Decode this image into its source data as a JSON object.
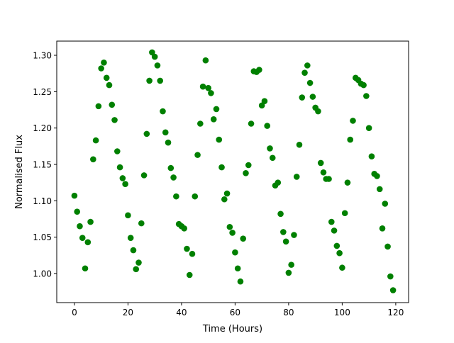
{
  "chart_data": {
    "type": "scatter",
    "title": "",
    "xlabel": "Time (Hours)",
    "ylabel": "Normalised Flux",
    "xlim": [
      -6.6,
      124.8
    ],
    "ylim": [
      0.96,
      1.3195
    ],
    "xticks": [
      0,
      20,
      40,
      60,
      80,
      100,
      120
    ],
    "yticks": [
      1.0,
      1.05,
      1.1,
      1.15,
      1.2,
      1.25,
      1.3
    ],
    "xtick_labels": [
      "0",
      "20",
      "40",
      "60",
      "80",
      "100",
      "120"
    ],
    "ytick_labels": [
      "1.00",
      "1.05",
      "1.10",
      "1.15",
      "1.20",
      "1.25",
      "1.30"
    ],
    "grid": false,
    "marker_color": "#008000",
    "x": [
      0,
      1,
      2,
      3,
      4,
      5,
      6,
      7,
      8,
      9,
      10,
      11,
      12,
      13,
      14,
      15,
      16,
      17,
      18,
      19,
      20,
      21,
      22,
      23,
      24,
      25,
      26,
      27,
      28,
      29,
      30,
      31,
      32,
      33,
      34,
      35,
      36,
      37,
      38,
      39,
      40,
      41,
      42,
      43,
      44,
      45,
      46,
      47,
      48,
      49,
      50,
      51,
      52,
      53,
      54,
      55,
      56,
      57,
      58,
      59,
      60,
      61,
      62,
      63,
      64,
      65,
      66,
      67,
      68,
      69,
      70,
      71,
      72,
      73,
      74,
      75,
      76,
      77,
      78,
      79,
      80,
      81,
      82,
      83,
      84,
      85,
      86,
      87,
      88,
      89,
      90,
      91,
      92,
      93,
      94,
      95,
      96,
      97,
      98,
      99,
      100,
      101,
      102,
      103,
      104,
      105,
      106,
      107,
      108,
      109,
      110,
      111,
      112,
      113,
      114,
      115,
      116,
      117,
      118,
      119
    ],
    "y": [
      1.107,
      1.085,
      1.065,
      1.049,
      1.007,
      1.043,
      1.071,
      1.157,
      1.183,
      1.23,
      1.282,
      1.29,
      1.269,
      1.259,
      1.232,
      1.211,
      1.168,
      1.146,
      1.131,
      1.123,
      1.08,
      1.049,
      1.032,
      1.006,
      1.015,
      1.069,
      1.135,
      1.192,
      1.265,
      1.304,
      1.298,
      1.286,
      1.265,
      1.223,
      1.194,
      1.18,
      1.145,
      1.132,
      1.106,
      1.068,
      1.065,
      1.062,
      1.034,
      0.998,
      1.027,
      1.106,
      1.163,
      1.206,
      1.257,
      1.293,
      1.255,
      1.248,
      1.212,
      1.226,
      1.184,
      1.146,
      1.102,
      1.11,
      1.064,
      1.056,
      1.029,
      1.007,
      0.989,
      1.048,
      1.138,
      1.149,
      1.206,
      1.278,
      1.277,
      1.28,
      1.231,
      1.237,
      1.203,
      1.172,
      1.159,
      1.121,
      1.125,
      1.082,
      1.057,
      1.044,
      1.001,
      1.012,
      1.053,
      1.133,
      1.177,
      1.242,
      1.276,
      1.286,
      1.262,
      1.243,
      1.228,
      1.223,
      1.152,
      1.139,
      1.13,
      1.13,
      1.071,
      1.059,
      1.038,
      1.028,
      1.008,
      1.083,
      1.125,
      1.184,
      1.21,
      1.269,
      1.266,
      1.261,
      1.259,
      1.244,
      1.2,
      1.161,
      1.137,
      1.134,
      1.116,
      1.062,
      1.096,
      1.037,
      0.996,
      0.977
    ]
  }
}
